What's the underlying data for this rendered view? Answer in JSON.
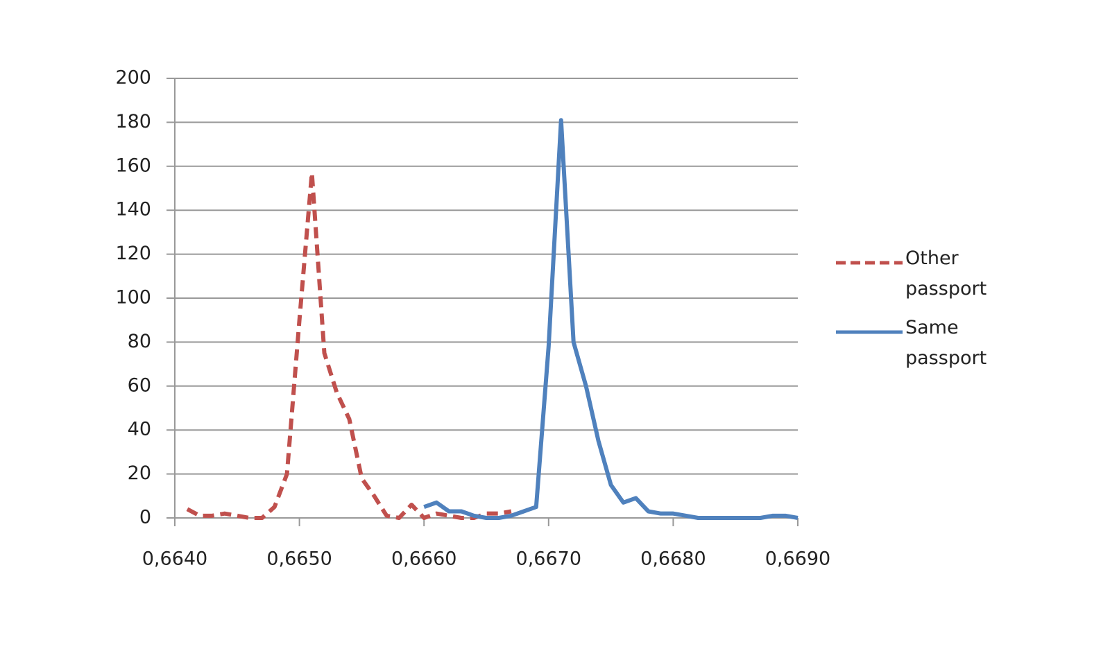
{
  "chart_data": {
    "type": "line",
    "x": [
      0.6641,
      0.6642,
      0.6643,
      0.6644,
      0.6645,
      0.6646,
      0.6647,
      0.6648,
      0.6649,
      0.665,
      0.6651,
      0.6652,
      0.6653,
      0.6654,
      0.6655,
      0.6656,
      0.6657,
      0.6658,
      0.6659,
      0.666,
      0.6661,
      0.6662,
      0.6663,
      0.6664,
      0.6665,
      0.6666,
      0.6667,
      0.6668,
      0.6669,
      0.667,
      0.6671,
      0.6672,
      0.6673,
      0.6674,
      0.6675,
      0.6676,
      0.6677,
      0.6678,
      0.6679,
      0.668,
      0.6681,
      0.6682,
      0.6683,
      0.6684,
      0.6685,
      0.6686,
      0.6687,
      0.6688,
      0.6689,
      0.669
    ],
    "series": [
      {
        "name": "Other passport",
        "color": "#c0504d",
        "dashed": true,
        "values": [
          4,
          1,
          1,
          2,
          1,
          0,
          0,
          5,
          20,
          90,
          157,
          75,
          57,
          45,
          18,
          10,
          1,
          0,
          6,
          0,
          2,
          1,
          0,
          0,
          2,
          2,
          3,
          null,
          null,
          null,
          null,
          null,
          null,
          null,
          null,
          null,
          null,
          null,
          null,
          null,
          null,
          null,
          null,
          null,
          null,
          null,
          null,
          null,
          null,
          null
        ]
      },
      {
        "name": "Same passport",
        "color": "#4f81bd",
        "dashed": false,
        "values": [
          null,
          null,
          null,
          null,
          null,
          null,
          null,
          null,
          null,
          null,
          null,
          null,
          null,
          null,
          null,
          null,
          null,
          null,
          null,
          5,
          7,
          3,
          3,
          1,
          0,
          0,
          1,
          3,
          5,
          78,
          181,
          80,
          60,
          35,
          15,
          7,
          9,
          3,
          2,
          2,
          1,
          0,
          0,
          0,
          0,
          0,
          0,
          1,
          1,
          0
        ]
      }
    ],
    "xlim": [
      0.664,
      0.669
    ],
    "xticks": [
      {
        "value": 0.664,
        "label": "0,6640"
      },
      {
        "value": 0.665,
        "label": "0,6650"
      },
      {
        "value": 0.666,
        "label": "0,6660"
      },
      {
        "value": 0.667,
        "label": "0,6670"
      },
      {
        "value": 0.668,
        "label": "0,6680"
      },
      {
        "value": 0.669,
        "label": "0,6690"
      }
    ],
    "ylim": [
      0,
      200
    ],
    "yticks": [
      0,
      20,
      40,
      60,
      80,
      100,
      120,
      140,
      160,
      180,
      200
    ],
    "grid": true,
    "legend": "right"
  }
}
